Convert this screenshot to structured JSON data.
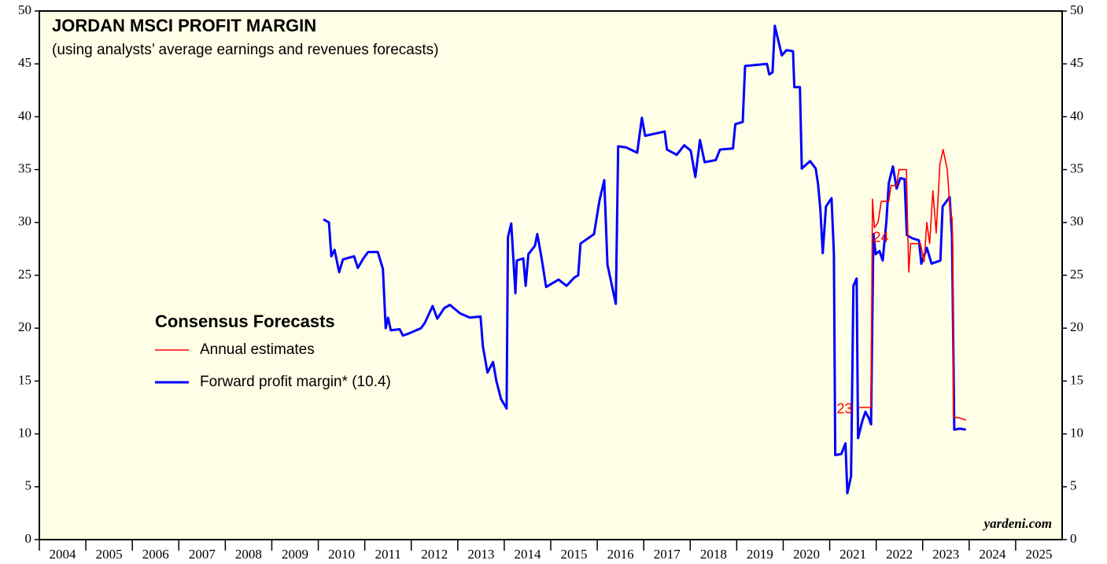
{
  "chart_data": {
    "type": "line",
    "title": "JORDAN MSCI PROFIT MARGIN",
    "subtitle": "(using analysts’ average earnings and revenues forecasts)",
    "legend_title": "Consensus Forecasts",
    "legend_position": "left",
    "source": "yardeni.com",
    "background": "#fffee6",
    "xlim": [
      2004,
      2026
    ],
    "xticks": [
      2004,
      2005,
      2006,
      2007,
      2008,
      2009,
      2010,
      2011,
      2012,
      2013,
      2014,
      2015,
      2016,
      2017,
      2018,
      2019,
      2020,
      2021,
      2022,
      2023,
      2024,
      2025
    ],
    "ylim": [
      0,
      50
    ],
    "yticks": [
      0,
      5,
      10,
      15,
      20,
      25,
      30,
      35,
      40,
      45,
      50
    ],
    "annotations": [
      {
        "text": "23",
        "x": 2021.32,
        "y": 12.3,
        "color": "#ff0000"
      },
      {
        "text": "24",
        "x": 2022.1,
        "y": 28.5,
        "color": "#ff0000"
      }
    ],
    "series": [
      {
        "name": "Annual estimates",
        "color": "#ff0000",
        "x": [
          2021.63,
          2021.89,
          2021.92,
          2021.96,
          2022.04,
          2022.11,
          2022.27,
          2022.32,
          2022.44,
          2022.49,
          2022.65,
          2022.7,
          2022.74,
          2022.95,
          2023.03,
          2023.09,
          2023.15,
          2023.22,
          2023.29,
          2023.37,
          2023.44,
          2023.53,
          2023.6,
          2023.63,
          2023.65,
          2023.66,
          2023.8,
          2023.93
        ],
        "values": [
          12.5,
          12.5,
          32.2,
          29.5,
          30.0,
          32.0,
          32.0,
          33.5,
          33.5,
          35.0,
          35.0,
          25.3,
          28.0,
          28.0,
          26.3,
          30.0,
          28.0,
          33.0,
          29.0,
          35.5,
          36.9,
          35.0,
          30.4,
          30.5,
          27.5,
          11.6,
          11.5,
          11.3
        ]
      },
      {
        "name": "Forward profit margin* (10.4)",
        "color": "#0000ff",
        "x": [
          2010.11,
          2010.23,
          2010.28,
          2010.35,
          2010.45,
          2010.53,
          2010.77,
          2010.85,
          2010.97,
          2011.07,
          2011.28,
          2011.39,
          2011.45,
          2011.5,
          2011.56,
          2011.75,
          2011.82,
          2011.95,
          2012.21,
          2012.29,
          2012.46,
          2012.56,
          2012.71,
          2012.83,
          2013.05,
          2013.26,
          2013.49,
          2013.54,
          2013.64,
          2013.76,
          2013.83,
          2013.93,
          2014.05,
          2014.08,
          2014.15,
          2014.24,
          2014.27,
          2014.41,
          2014.46,
          2014.52,
          2014.66,
          2014.71,
          2014.8,
          2014.9,
          2015.17,
          2015.34,
          2015.51,
          2015.59,
          2015.64,
          2015.93,
          2016.05,
          2016.15,
          2016.22,
          2016.4,
          2016.45,
          2016.62,
          2016.86,
          2016.96,
          2017.03,
          2017.45,
          2017.5,
          2017.71,
          2017.87,
          2018.01,
          2018.11,
          2018.21,
          2018.31,
          2018.55,
          2018.64,
          2018.92,
          2018.97,
          2019.13,
          2019.18,
          2019.65,
          2019.7,
          2019.77,
          2019.82,
          2019.97,
          2020.07,
          2020.21,
          2020.24,
          2020.36,
          2020.4,
          2020.58,
          2020.7,
          2020.75,
          2020.8,
          2020.85,
          2020.92,
          2021.04,
          2021.09,
          2021.12,
          2021.25,
          2021.34,
          2021.38,
          2021.46,
          2021.51,
          2021.58,
          2021.61,
          2021.7,
          2021.77,
          2021.84,
          2021.89,
          2021.94,
          2021.99,
          2022.07,
          2022.14,
          2022.22,
          2022.27,
          2022.36,
          2022.44,
          2022.52,
          2022.61,
          2022.66,
          2022.78,
          2022.92,
          2022.97,
          2023.09,
          2023.19,
          2023.38,
          2023.43,
          2023.58,
          2023.63,
          2023.68,
          2023.8,
          2023.93
        ],
        "values": [
          30.3,
          30.0,
          26.8,
          27.4,
          25.3,
          26.5,
          26.8,
          25.7,
          26.6,
          27.2,
          27.2,
          25.6,
          20.0,
          21.0,
          19.8,
          19.9,
          19.3,
          19.5,
          20.0,
          20.5,
          22.1,
          20.9,
          21.9,
          22.2,
          21.4,
          21.0,
          21.1,
          18.3,
          15.8,
          16.8,
          15.0,
          13.3,
          12.4,
          28.6,
          29.9,
          23.3,
          26.4,
          26.6,
          24.0,
          27.0,
          27.8,
          28.9,
          26.7,
          23.9,
          24.6,
          24.0,
          24.8,
          25.0,
          28.0,
          28.9,
          32.1,
          34.0,
          26.0,
          22.3,
          37.2,
          37.1,
          36.6,
          39.9,
          38.2,
          38.6,
          36.9,
          36.4,
          37.3,
          36.8,
          34.3,
          37.8,
          35.7,
          35.9,
          36.9,
          37.0,
          39.3,
          39.5,
          44.8,
          45.0,
          44.0,
          44.2,
          48.6,
          45.8,
          46.3,
          46.2,
          42.8,
          42.8,
          35.1,
          35.8,
          35.1,
          33.6,
          31.2,
          27.1,
          31.5,
          32.3,
          27.0,
          8.0,
          8.1,
          9.1,
          4.4,
          6.0,
          24.0,
          24.7,
          9.6,
          11.2,
          12.1,
          11.5,
          10.9,
          28.9,
          27.0,
          27.3,
          26.4,
          30.1,
          33.7,
          35.3,
          33.2,
          34.2,
          34.1,
          28.8,
          28.5,
          28.3,
          26.1,
          27.6,
          26.1,
          26.4,
          31.5,
          32.4,
          28.7,
          10.4,
          10.5,
          10.4
        ]
      }
    ]
  }
}
